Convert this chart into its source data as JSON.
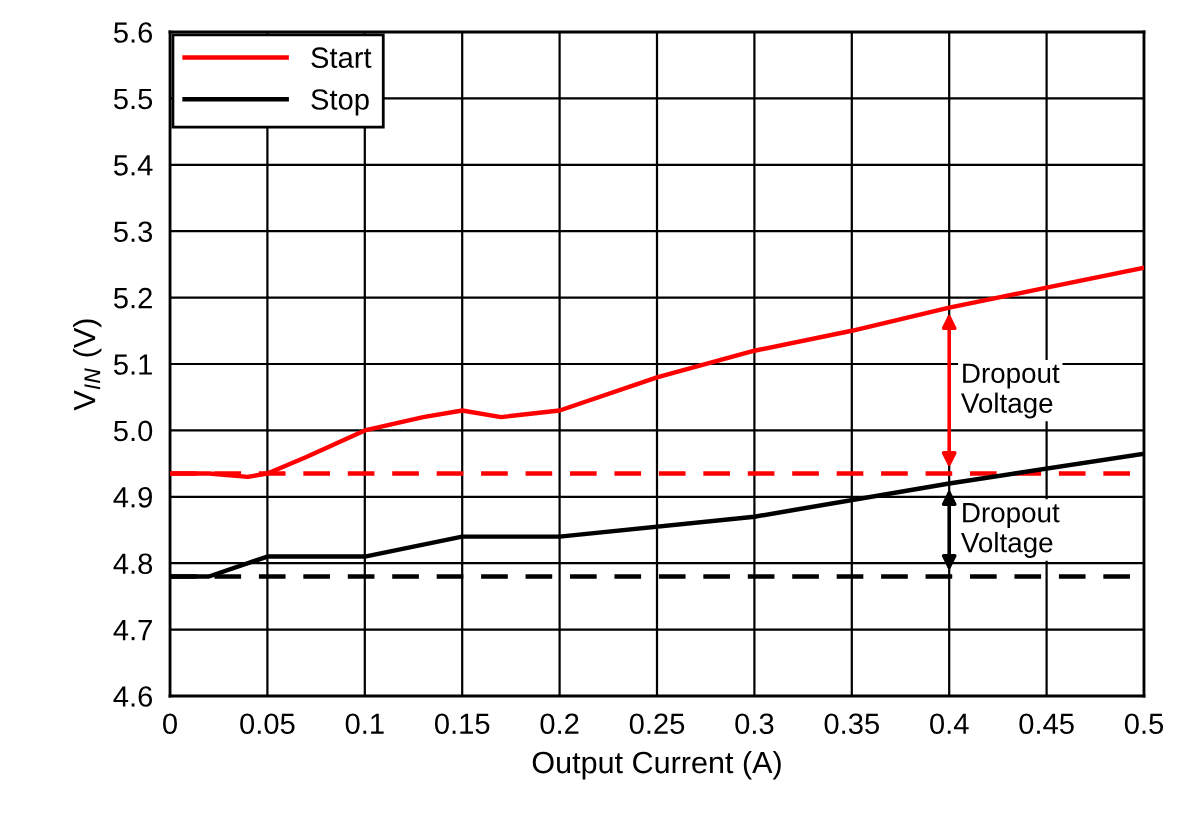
{
  "chart_data": {
    "type": "line",
    "xlabel": "Output Current (A)",
    "ylabel": "V$_{IN}$ (V)",
    "series": [
      {
        "name": "Start",
        "color": "#ff0000",
        "x": [
          0,
          0.02,
          0.04,
          0.05,
          0.07,
          0.1,
          0.13,
          0.15,
          0.17,
          0.2,
          0.25,
          0.3,
          0.35,
          0.4,
          0.45,
          0.5
        ],
        "values": [
          4.935,
          4.935,
          4.93,
          4.935,
          4.96,
          5.0,
          5.02,
          5.03,
          5.02,
          5.03,
          5.08,
          5.12,
          5.15,
          5.185,
          5.215,
          5.245
        ]
      },
      {
        "name": "Stop",
        "color": "#000000",
        "x": [
          0,
          0.02,
          0.05,
          0.1,
          0.15,
          0.2,
          0.3,
          0.4,
          0.5
        ],
        "values": [
          4.78,
          4.78,
          4.81,
          4.81,
          4.84,
          4.84,
          4.87,
          4.92,
          4.965
        ]
      }
    ],
    "ref_lines": [
      {
        "axis": "y",
        "value": 4.935,
        "color": "#ff0000",
        "line_style": "dashed"
      },
      {
        "axis": "y",
        "value": 4.78,
        "color": "#000000",
        "line_style": "dashed"
      }
    ],
    "annotations": [
      {
        "text": "Dropout\nVoltage",
        "x": 0.4,
        "y": 5.185
      },
      {
        "text": "Dropout\nVoltage",
        "x": 0.4,
        "y": 4.92
      }
    ],
    "xlim": [
      0,
      0.5
    ],
    "ylim": [
      4.6,
      5.6
    ],
    "xticks": [
      0,
      0.05,
      0.1,
      0.15,
      0.2,
      0.25,
      0.3,
      0.35,
      0.4,
      0.45,
      0.5
    ],
    "yticks": [
      4.6,
      4.7,
      4.8,
      4.9,
      {
        "value": 5.0,
        "label": "5.0"
      },
      5.1,
      5.2,
      5.3,
      5.4,
      5.5,
      5.6
    ],
    "grid": true,
    "legend": "top left",
    "marker": "none",
    "line_style": "solid"
  }
}
